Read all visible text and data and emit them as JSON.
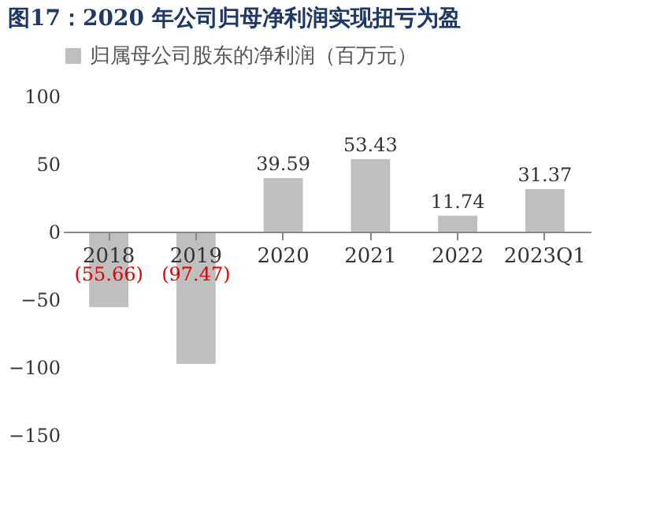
{
  "chart_data": {
    "type": "bar",
    "title": "图17：2020 年公司归母净利润实现扭亏为盈",
    "categories": [
      "2018",
      "2019",
      "2020",
      "2021",
      "2022",
      "2023Q1"
    ],
    "series": [
      {
        "name": "归属母公司股东的净利润（百万元）",
        "color": "#bfbfbf",
        "values": [
          -55.66,
          -97.47,
          39.59,
          53.43,
          11.74,
          31.37
        ],
        "value_labels": [
          "(55.66)",
          "(97.47)",
          "39.59",
          "53.43",
          "11.74",
          "31.37"
        ]
      }
    ],
    "ylim": [
      -150,
      100
    ],
    "yticks": [
      -150,
      -100,
      -50,
      0,
      50,
      100
    ],
    "grid": false,
    "legend": "top"
  }
}
